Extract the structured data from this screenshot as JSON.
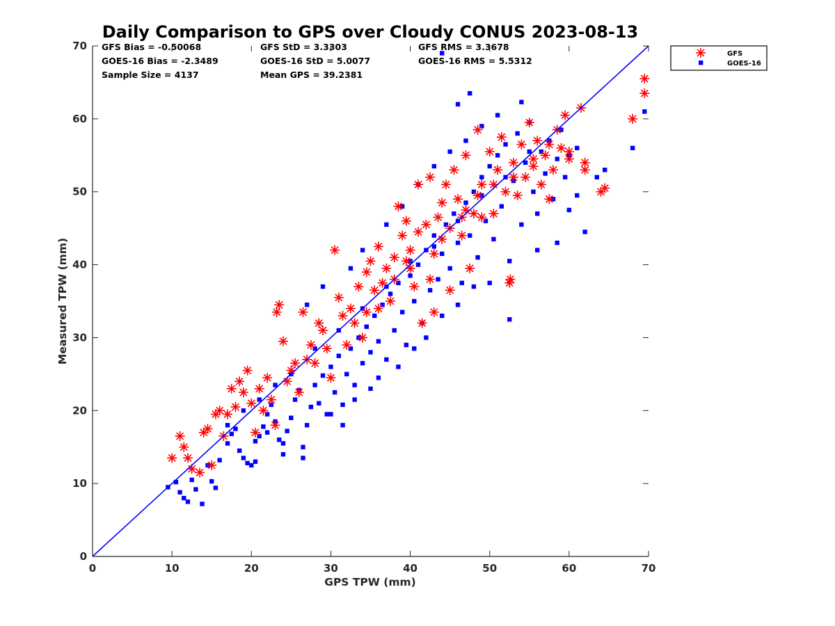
{
  "chart_data": {
    "type": "scatter",
    "title": "Daily Comparison to GPS over Cloudy CONUS 2023-08-13",
    "xlabel": "GPS TPW (mm)",
    "ylabel": "Measured TPW (mm)",
    "xlim": [
      0,
      70
    ],
    "ylim": [
      0,
      70
    ],
    "xticks": [
      "0",
      "10",
      "20",
      "30",
      "40",
      "50",
      "60",
      "70"
    ],
    "yticks": [
      "0",
      "10",
      "20",
      "30",
      "40",
      "50",
      "60",
      "70"
    ],
    "grid": false,
    "legend_position": "outside-top-right",
    "stats": [
      [
        "GFS Bias = -0.50068",
        "GFS StD = 3.3303",
        "GFS RMS = 3.3678"
      ],
      [
        "GOES-16 Bias = -2.3489",
        "GOES-16 StD = 5.0077",
        "GOES-16 RMS = 5.5312"
      ],
      [
        "Sample Size = 4137",
        "Mean GPS = 39.2381",
        ""
      ]
    ],
    "reference_line": {
      "x": [
        0,
        70
      ],
      "y": [
        0,
        70
      ],
      "color": "#0000ff"
    },
    "series": [
      {
        "name": "GOES-16",
        "marker": "square",
        "color": "#0000ff",
        "points": [
          [
            9.5,
            9.5
          ],
          [
            10.5,
            10.2
          ],
          [
            11.0,
            8.8
          ],
          [
            11.5,
            8.0
          ],
          [
            12.0,
            7.5
          ],
          [
            12.5,
            10.5
          ],
          [
            13.0,
            9.2
          ],
          [
            13.8,
            7.2
          ],
          [
            14.5,
            12.5
          ],
          [
            15.0,
            10.3
          ],
          [
            15.5,
            9.4
          ],
          [
            16.0,
            13.2
          ],
          [
            17.0,
            15.5
          ],
          [
            17.5,
            16.8
          ],
          [
            18.0,
            17.5
          ],
          [
            18.5,
            14.5
          ],
          [
            19.0,
            13.5
          ],
          [
            19.5,
            12.8
          ],
          [
            20.0,
            12.5
          ],
          [
            20.5,
            15.8
          ],
          [
            20.5,
            13.0
          ],
          [
            21.0,
            16.5
          ],
          [
            21.5,
            17.8
          ],
          [
            22.0,
            19.5
          ],
          [
            22.5,
            20.8
          ],
          [
            23.0,
            18.5
          ],
          [
            23.5,
            16.0
          ],
          [
            24.0,
            14.0
          ],
          [
            24.5,
            17.2
          ],
          [
            25.0,
            19.0
          ],
          [
            25.5,
            21.5
          ],
          [
            26.0,
            22.8
          ],
          [
            26.5,
            15.0
          ],
          [
            27.0,
            18.0
          ],
          [
            27.5,
            20.5
          ],
          [
            28.0,
            23.5
          ],
          [
            28.5,
            21.0
          ],
          [
            29.0,
            24.8
          ],
          [
            29.5,
            19.5
          ],
          [
            30.0,
            26.0
          ],
          [
            30.5,
            22.5
          ],
          [
            31.0,
            27.5
          ],
          [
            31.5,
            20.8
          ],
          [
            32.0,
            25.0
          ],
          [
            32.5,
            28.5
          ],
          [
            33.0,
            23.5
          ],
          [
            33.5,
            30.0
          ],
          [
            34.0,
            26.5
          ],
          [
            34.5,
            31.5
          ],
          [
            35.0,
            28.0
          ],
          [
            35.5,
            33.0
          ],
          [
            36.0,
            29.5
          ],
          [
            36.5,
            34.5
          ],
          [
            37.0,
            27.0
          ],
          [
            37.5,
            36.0
          ],
          [
            38.0,
            31.0
          ],
          [
            38.5,
            37.5
          ],
          [
            39.0,
            33.5
          ],
          [
            39.5,
            29.0
          ],
          [
            40.0,
            38.5
          ],
          [
            40.5,
            35.0
          ],
          [
            41.0,
            40.0
          ],
          [
            41.5,
            32.0
          ],
          [
            42.0,
            42.0
          ],
          [
            42.5,
            36.5
          ],
          [
            43.0,
            44.0
          ],
          [
            43.5,
            38.0
          ],
          [
            44.0,
            41.5
          ],
          [
            44.5,
            45.5
          ],
          [
            45.0,
            39.5
          ],
          [
            45.5,
            47.0
          ],
          [
            46.0,
            43.0
          ],
          [
            46.5,
            37.5
          ],
          [
            47.0,
            48.5
          ],
          [
            47.5,
            44.0
          ],
          [
            48.0,
            50.0
          ],
          [
            48.5,
            41.0
          ],
          [
            49.0,
            52.0
          ],
          [
            49.5,
            46.0
          ],
          [
            50.0,
            53.5
          ],
          [
            50.5,
            43.5
          ],
          [
            51.0,
            55.0
          ],
          [
            51.5,
            48.0
          ],
          [
            52.0,
            56.5
          ],
          [
            52.5,
            40.5
          ],
          [
            53.0,
            51.5
          ],
          [
            53.5,
            58.0
          ],
          [
            54.0,
            45.5
          ],
          [
            54.5,
            54.0
          ],
          [
            55.0,
            59.5
          ],
          [
            55.5,
            50.0
          ],
          [
            56.0,
            47.0
          ],
          [
            56.5,
            55.5
          ],
          [
            57.0,
            52.5
          ],
          [
            57.5,
            57.0
          ],
          [
            58.0,
            49.0
          ],
          [
            58.5,
            54.5
          ],
          [
            59.0,
            58.5
          ],
          [
            59.5,
            52.0
          ],
          [
            60.0,
            55.0
          ],
          [
            61.0,
            56.0
          ],
          [
            62.0,
            44.5
          ],
          [
            63.5,
            52.0
          ],
          [
            64.5,
            53.0
          ],
          [
            68.0,
            56.0
          ],
          [
            69.5,
            61.0
          ],
          [
            47.5,
            63.5
          ],
          [
            46.0,
            62.0
          ],
          [
            44.0,
            69.0
          ],
          [
            54.0,
            62.3
          ],
          [
            52.5,
            32.5
          ],
          [
            50.0,
            37.5
          ],
          [
            48.0,
            37.0
          ],
          [
            30.0,
            19.5
          ],
          [
            31.5,
            18.0
          ],
          [
            26.5,
            13.5
          ],
          [
            24.0,
            15.5
          ],
          [
            22.0,
            17.0
          ],
          [
            36.0,
            24.5
          ],
          [
            38.5,
            26.0
          ],
          [
            40.5,
            28.5
          ],
          [
            42.0,
            30.0
          ],
          [
            44.0,
            33.0
          ],
          [
            46.0,
            34.5
          ],
          [
            58.5,
            43.0
          ],
          [
            60.0,
            47.5
          ],
          [
            61.0,
            49.5
          ],
          [
            56.0,
            42.0
          ],
          [
            27.0,
            34.5
          ],
          [
            29.0,
            37.0
          ],
          [
            32.5,
            39.5
          ],
          [
            34.0,
            42.0
          ],
          [
            37.0,
            45.5
          ],
          [
            39.0,
            48.0
          ],
          [
            41.0,
            51.0
          ],
          [
            43.0,
            53.5
          ],
          [
            45.0,
            55.5
          ],
          [
            47.0,
            57.0
          ],
          [
            49.0,
            59.0
          ],
          [
            51.0,
            60.5
          ],
          [
            33.0,
            21.5
          ],
          [
            35.0,
            23.0
          ],
          [
            25.0,
            25.0
          ],
          [
            28.0,
            28.5
          ],
          [
            31.0,
            31.0
          ],
          [
            34.0,
            34.0
          ],
          [
            37.0,
            37.0
          ],
          [
            40.0,
            40.5
          ],
          [
            43.0,
            42.5
          ],
          [
            46.0,
            46.0
          ],
          [
            49.0,
            49.5
          ],
          [
            52.0,
            52.0
          ],
          [
            55.0,
            55.5
          ],
          [
            21.0,
            21.5
          ],
          [
            23.0,
            23.5
          ],
          [
            19.0,
            20.0
          ],
          [
            17.0,
            18.0
          ]
        ]
      },
      {
        "name": "GFS",
        "marker": "asterisk",
        "color": "#ff0000",
        "points": [
          [
            10.0,
            13.5
          ],
          [
            11.0,
            16.5
          ],
          [
            11.5,
            15.0
          ],
          [
            12.0,
            13.5
          ],
          [
            12.5,
            12.0
          ],
          [
            13.5,
            11.5
          ],
          [
            14.0,
            17.0
          ],
          [
            14.5,
            17.5
          ],
          [
            15.0,
            12.5
          ],
          [
            15.5,
            19.5
          ],
          [
            16.0,
            20.0
          ],
          [
            16.5,
            16.5
          ],
          [
            17.0,
            19.5
          ],
          [
            17.5,
            23.0
          ],
          [
            18.0,
            20.5
          ],
          [
            18.5,
            24.0
          ],
          [
            19.0,
            22.5
          ],
          [
            19.5,
            25.5
          ],
          [
            20.0,
            21.0
          ],
          [
            20.5,
            17.0
          ],
          [
            21.0,
            23.0
          ],
          [
            22.0,
            24.5
          ],
          [
            23.0,
            18.0
          ],
          [
            23.5,
            34.5
          ],
          [
            23.2,
            33.5
          ],
          [
            24.0,
            29.5
          ],
          [
            25.0,
            25.5
          ],
          [
            26.0,
            22.5
          ],
          [
            26.5,
            33.5
          ],
          [
            27.0,
            27.0
          ],
          [
            28.0,
            26.5
          ],
          [
            29.0,
            31.0
          ],
          [
            30.0,
            24.5
          ],
          [
            30.5,
            42.0
          ],
          [
            31.0,
            35.5
          ],
          [
            32.0,
            29.0
          ],
          [
            33.0,
            32.0
          ],
          [
            34.0,
            30.0
          ],
          [
            34.5,
            39.0
          ],
          [
            35.0,
            40.5
          ],
          [
            36.0,
            42.5
          ],
          [
            36.5,
            37.5
          ],
          [
            37.5,
            35.0
          ],
          [
            38.0,
            41.0
          ],
          [
            38.5,
            48.0
          ],
          [
            39.0,
            44.0
          ],
          [
            39.5,
            46.0
          ],
          [
            40.0,
            39.5
          ],
          [
            40.5,
            37.0
          ],
          [
            41.0,
            51.0
          ],
          [
            41.5,
            32.0
          ],
          [
            42.0,
            45.5
          ],
          [
            42.5,
            52.0
          ],
          [
            43.0,
            33.5
          ],
          [
            43.5,
            46.5
          ],
          [
            44.0,
            48.5
          ],
          [
            44.5,
            51.0
          ],
          [
            45.0,
            36.5
          ],
          [
            45.5,
            53.0
          ],
          [
            46.0,
            49.0
          ],
          [
            46.5,
            44.0
          ],
          [
            47.0,
            55.0
          ],
          [
            47.5,
            39.5
          ],
          [
            48.0,
            47.0
          ],
          [
            48.5,
            58.5
          ],
          [
            49.0,
            51.0
          ],
          [
            50.0,
            55.5
          ],
          [
            50.5,
            47.0
          ],
          [
            51.0,
            53.0
          ],
          [
            51.5,
            57.5
          ],
          [
            52.0,
            50.0
          ],
          [
            52.5,
            37.5
          ],
          [
            52.6,
            38.0
          ],
          [
            53.0,
            54.0
          ],
          [
            53.5,
            49.5
          ],
          [
            54.0,
            56.5
          ],
          [
            54.5,
            52.0
          ],
          [
            55.0,
            59.5
          ],
          [
            55.5,
            53.5
          ],
          [
            56.0,
            57.0
          ],
          [
            56.5,
            51.0
          ],
          [
            57.0,
            55.0
          ],
          [
            57.5,
            49.0
          ],
          [
            58.0,
            53.0
          ],
          [
            58.5,
            58.5
          ],
          [
            59.0,
            56.0
          ],
          [
            59.5,
            60.5
          ],
          [
            60.0,
            55.5
          ],
          [
            61.5,
            61.5
          ],
          [
            62.0,
            53.0
          ],
          [
            62.0,
            54.0
          ],
          [
            64.0,
            50.0
          ],
          [
            64.5,
            50.5
          ],
          [
            68.0,
            60.0
          ],
          [
            69.5,
            65.5
          ],
          [
            69.5,
            63.5
          ],
          [
            42.5,
            38.0
          ],
          [
            40.0,
            42.0
          ],
          [
            37.0,
            39.5
          ],
          [
            35.5,
            36.5
          ],
          [
            33.5,
            37.0
          ],
          [
            31.5,
            33.0
          ],
          [
            29.5,
            28.5
          ],
          [
            27.5,
            29.0
          ],
          [
            25.5,
            26.5
          ],
          [
            24.5,
            24.0
          ],
          [
            22.5,
            21.5
          ],
          [
            21.5,
            20.0
          ],
          [
            44.0,
            43.5
          ],
          [
            46.5,
            46.5
          ],
          [
            48.5,
            49.5
          ],
          [
            50.5,
            51.0
          ],
          [
            53.0,
            52.0
          ],
          [
            55.5,
            54.5
          ],
          [
            57.5,
            56.5
          ],
          [
            60.0,
            54.5
          ],
          [
            28.5,
            32.0
          ],
          [
            32.5,
            34.0
          ],
          [
            34.5,
            33.5
          ],
          [
            36.0,
            34.0
          ],
          [
            38.0,
            38.0
          ],
          [
            39.5,
            40.5
          ],
          [
            41.0,
            44.5
          ],
          [
            43.0,
            41.5
          ],
          [
            45.0,
            45.0
          ],
          [
            47.0,
            47.5
          ],
          [
            49.0,
            46.5
          ]
        ]
      }
    ]
  }
}
